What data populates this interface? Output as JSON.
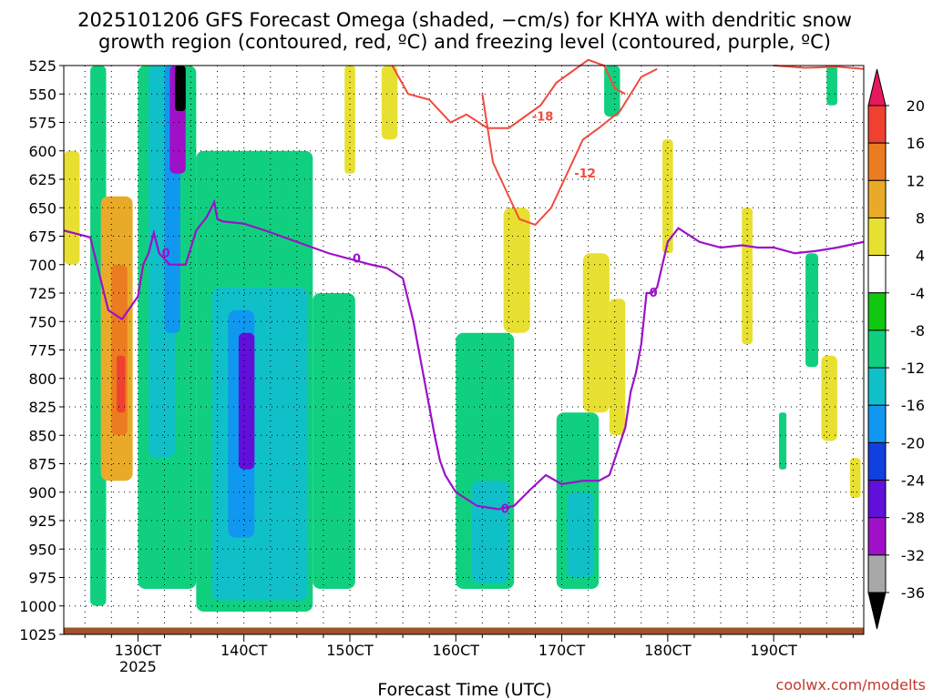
{
  "chart_data": {
    "type": "heatmap",
    "title": "2025101206 GFS Forecast Omega (shaded, −cm/s) for KHYA with dendritic snow growth region (contoured, red, ºC) and freezing level (contoured, purple, ºC)",
    "title_lines": [
      "2025101206 GFS Forecast Omega (shaded, −cm/s) for KHYA with dendritic snow",
      "growth region (contoured, red, ºC) and freezing level (contoured, purple, ºC)"
    ],
    "xlabel": "Forecast Time (UTC)",
    "ylabel": "",
    "credit": "coolwx.com/modelts",
    "x_ticks": [
      {
        "label": "130CT",
        "sub": "2025",
        "day": 13
      },
      {
        "label": "140CT",
        "sub": "",
        "day": 14
      },
      {
        "label": "150CT",
        "sub": "",
        "day": 15
      },
      {
        "label": "160CT",
        "sub": "",
        "day": 16
      },
      {
        "label": "170CT",
        "sub": "",
        "day": 17
      },
      {
        "label": "180CT",
        "sub": "",
        "day": 18
      },
      {
        "label": "190CT",
        "sub": "",
        "day": 19
      }
    ],
    "xlim": [
      12.3,
      19.85
    ],
    "ylim": [
      525,
      1025
    ],
    "y_scale": "linear",
    "y_ticks": [
      525,
      550,
      575,
      600,
      625,
      650,
      675,
      700,
      725,
      750,
      775,
      800,
      825,
      850,
      875,
      900,
      925,
      950,
      975,
      1000,
      1025
    ],
    "grid": true,
    "colorbar": {
      "ticks": [
        "20",
        "16",
        "12",
        "8",
        "4",
        "-4",
        "-8",
        "-12",
        "-16",
        "-20",
        "-24",
        "-28",
        "-32",
        "-36"
      ],
      "colors": [
        "#e8185f",
        "#f04030",
        "#ec7c20",
        "#e8aa28",
        "#e8e030",
        "#ffffff",
        "#10c810",
        "#10d080",
        "#10c0c8",
        "#1098f0",
        "#1040e0",
        "#6010d8",
        "#a010c8",
        "#a8a8a8",
        "#000000"
      ]
    },
    "freezing_level": {
      "color": "#9b12c8",
      "label": "0",
      "x": [
        12.3,
        12.55,
        12.72,
        12.85,
        13.0,
        13.05,
        13.1,
        13.15,
        13.2,
        13.3,
        13.45,
        13.55,
        13.65,
        13.72,
        13.75,
        13.8,
        14.0,
        14.2,
        14.5,
        14.8,
        15.0,
        15.2,
        15.35,
        15.5,
        15.6,
        15.7,
        15.8,
        15.85,
        15.9,
        16.0,
        16.2,
        16.4,
        16.55,
        16.7,
        16.85,
        17.0,
        17.2,
        17.35,
        17.45,
        17.6,
        17.65,
        17.7,
        17.75,
        17.8,
        17.85,
        17.9,
        18.0,
        18.1,
        18.3,
        18.5,
        18.7,
        18.85,
        19.0,
        19.2,
        19.4,
        19.6,
        19.85
      ],
      "y": [
        670,
        676,
        740,
        748,
        728,
        700,
        690,
        672,
        690,
        700,
        700,
        670,
        658,
        645,
        660,
        662,
        664,
        670,
        680,
        690,
        695,
        700,
        703,
        712,
        750,
        800,
        850,
        872,
        885,
        900,
        912,
        915,
        912,
        898,
        885,
        893,
        890,
        890,
        885,
        843,
        812,
        795,
        770,
        725,
        725,
        720,
        680,
        668,
        680,
        685,
        683,
        685,
        685,
        690,
        688,
        685,
        680
      ]
    },
    "dgz_contours": [
      {
        "label": "-18",
        "color": "#f24a3c",
        "x": [
          15.4,
          15.55,
          15.75,
          15.95,
          16.1,
          16.3,
          16.5,
          16.65,
          16.8,
          16.95,
          17.1,
          17.25,
          17.4,
          17.5,
          17.6
        ],
        "y": [
          525,
          550,
          555,
          575,
          568,
          580,
          580,
          570,
          560,
          540,
          530,
          520,
          525,
          545,
          550
        ]
      },
      {
        "label": "-12",
        "color": "#f24a3c",
        "x": [
          16.25,
          16.35,
          16.5,
          16.6,
          16.75,
          16.9,
          17.05,
          17.2,
          17.35,
          17.55,
          17.65,
          17.75,
          17.9
        ],
        "y": [
          550,
          610,
          640,
          660,
          665,
          650,
          620,
          590,
          580,
          565,
          550,
          535,
          528
        ]
      },
      {
        "label": "",
        "color": "#f24a3c",
        "x": [
          19.0,
          19.3,
          19.6,
          19.85
        ],
        "y": [
          525,
          527,
          526,
          528
        ]
      }
    ],
    "omega_patches": [
      {
        "level": "-8",
        "x": [
          12.55,
          12.7
        ],
        "p": [
          525,
          1000
        ]
      },
      {
        "level": "-8",
        "x": [
          13.0,
          13.55
        ],
        "p": [
          525,
          985
        ]
      },
      {
        "level": "-12",
        "x": [
          13.1,
          13.35
        ],
        "p": [
          525,
          870
        ]
      },
      {
        "level": "-16",
        "x": [
          13.25,
          13.4
        ],
        "p": [
          525,
          760
        ]
      },
      {
        "level": "-28",
        "x": [
          13.3,
          13.45
        ],
        "p": [
          525,
          620
        ]
      },
      {
        "level": "-36",
        "x": [
          13.35,
          13.45
        ],
        "p": [
          525,
          565
        ]
      },
      {
        "level": "-8",
        "x": [
          13.55,
          14.65
        ],
        "p": [
          600,
          1005
        ]
      },
      {
        "level": "-12",
        "x": [
          13.7,
          14.6
        ],
        "p": [
          720,
          995
        ]
      },
      {
        "level": "-16",
        "x": [
          13.85,
          14.1
        ],
        "p": [
          740,
          940
        ]
      },
      {
        "level": "-24",
        "x": [
          13.95,
          14.1
        ],
        "p": [
          760,
          880
        ]
      },
      {
        "level": "-8",
        "x": [
          14.65,
          15.05
        ],
        "p": [
          725,
          985
        ]
      },
      {
        "level": "-8",
        "x": [
          16.0,
          16.55
        ],
        "p": [
          760,
          985
        ]
      },
      {
        "level": "-12",
        "x": [
          16.15,
          16.5
        ],
        "p": [
          890,
          980
        ]
      },
      {
        "level": "-8",
        "x": [
          16.95,
          17.35
        ],
        "p": [
          830,
          985
        ]
      },
      {
        "level": "-12",
        "x": [
          17.05,
          17.3
        ],
        "p": [
          900,
          975
        ]
      },
      {
        "level": "-8",
        "x": [
          17.4,
          17.55
        ],
        "p": [
          525,
          570
        ]
      },
      {
        "level": "-8",
        "x": [
          19.3,
          19.42
        ],
        "p": [
          690,
          790
        ]
      },
      {
        "level": "-8",
        "x": [
          19.05,
          19.12
        ],
        "p": [
          830,
          880
        ]
      },
      {
        "level": "-8",
        "x": [
          19.5,
          19.6
        ],
        "p": [
          525,
          560
        ]
      },
      {
        "level": "8",
        "x": [
          12.65,
          12.95
        ],
        "p": [
          640,
          890
        ]
      },
      {
        "level": "12",
        "x": [
          12.75,
          12.9
        ],
        "p": [
          700,
          850
        ]
      },
      {
        "level": "16",
        "x": [
          12.8,
          12.88
        ],
        "p": [
          780,
          830
        ]
      },
      {
        "level": "4",
        "x": [
          12.3,
          12.45
        ],
        "p": [
          600,
          700
        ]
      },
      {
        "level": "4",
        "x": [
          15.3,
          15.45
        ],
        "p": [
          525,
          590
        ]
      },
      {
        "level": "4",
        "x": [
          16.45,
          16.7
        ],
        "p": [
          650,
          760
        ]
      },
      {
        "level": "4",
        "x": [
          17.2,
          17.45
        ],
        "p": [
          690,
          830
        ]
      },
      {
        "level": "4",
        "x": [
          17.45,
          17.6
        ],
        "p": [
          730,
          850
        ]
      },
      {
        "level": "4",
        "x": [
          17.95,
          18.05
        ],
        "p": [
          590,
          690
        ]
      },
      {
        "level": "4",
        "x": [
          18.7,
          18.8
        ],
        "p": [
          650,
          770
        ]
      },
      {
        "level": "4",
        "x": [
          19.45,
          19.6
        ],
        "p": [
          780,
          855
        ]
      },
      {
        "level": "4",
        "x": [
          19.72,
          19.82
        ],
        "p": [
          870,
          905
        ]
      },
      {
        "level": "4",
        "x": [
          14.95,
          15.05
        ],
        "p": [
          525,
          620
        ]
      }
    ],
    "surface": {
      "color": "#a0522d",
      "label": "terrain"
    }
  }
}
